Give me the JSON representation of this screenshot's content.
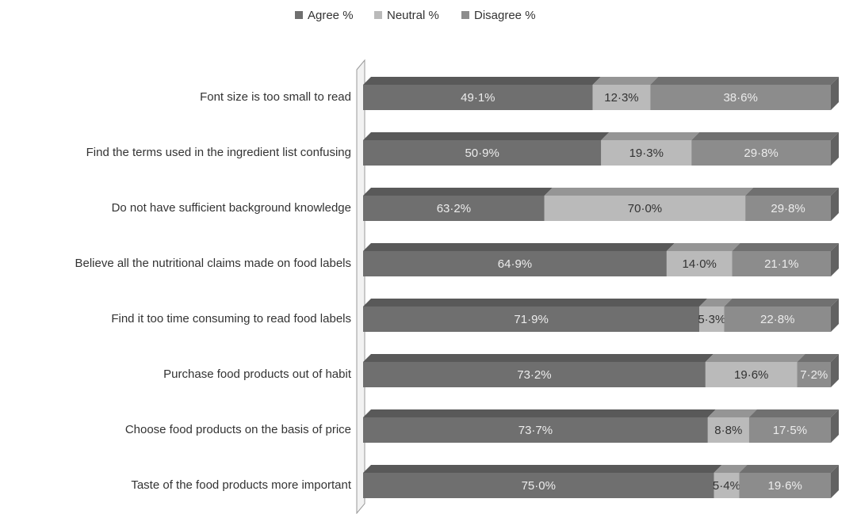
{
  "chart_data": {
    "type": "bar",
    "orientation": "horizontal",
    "stacked": true,
    "categories": [
      "Font size is too small to read",
      "Find the terms used in the ingredient list confusing",
      "Do not have sufficient background knowledge",
      "Believe all the nutritional claims made on food labels",
      "Find it too time consuming to read food labels",
      "Purchase food products out of habit",
      "Choose food products on the basis of price",
      "Taste of the food products more important"
    ],
    "series": [
      {
        "name": "Agree %",
        "color": "#6f6f6f",
        "label_color": "#ececec",
        "values": [
          49.1,
          50.9,
          63.2,
          64.9,
          71.9,
          73.2,
          73.7,
          75.0
        ],
        "value_labels": [
          "49·1%",
          "50·9%",
          "63·2%",
          "64·9%",
          "71·9%",
          "73·2%",
          "73·7%",
          "75·0%"
        ]
      },
      {
        "name": "Neutral %",
        "color": "#bababa",
        "label_color": "#333333",
        "values": [
          12.3,
          19.3,
          70.0,
          14.0,
          5.3,
          19.6,
          8.8,
          5.4
        ],
        "value_labels": [
          "12·3%",
          "19·3%",
          "70·0%",
          "14·0%",
          "5·3%",
          "19·6%",
          "8·8%",
          "5·4%"
        ]
      },
      {
        "name": "Disagree %",
        "color": "#8c8c8c",
        "label_color": "#ececec",
        "values": [
          38.6,
          29.8,
          29.8,
          21.1,
          22.8,
          7.2,
          17.5,
          19.6
        ],
        "value_labels": [
          "38·6%",
          "29·8%",
          "29·8%",
          "21·1%",
          "22·8%",
          "7·2%",
          "17·5%",
          "19·6%"
        ]
      }
    ]
  }
}
